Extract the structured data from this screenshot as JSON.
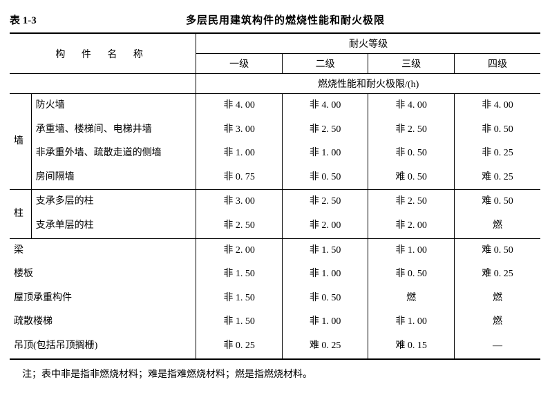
{
  "table_no": "表 1-3",
  "title": "多层民用建筑构件的燃烧性能和耐火极限",
  "header": {
    "component_name": "构 件 名 称",
    "fire_rating": "耐火等级",
    "grades": [
      "一级",
      "二级",
      "三级",
      "四级"
    ],
    "subhead": "燃烧性能和耐火极限/(h)"
  },
  "groups": [
    {
      "label": "墙",
      "rows": [
        {
          "name": "防火墙",
          "v": [
            "非 4. 00",
            "非 4. 00",
            "非 4. 00",
            "非 4. 00"
          ]
        },
        {
          "name": "承重墙、楼梯间、电梯井墙",
          "v": [
            "非 3. 00",
            "非 2. 50",
            "非 2. 50",
            "非 0. 50"
          ]
        },
        {
          "name": "非承重外墙、疏散走道的侧墙",
          "v": [
            "非 1. 00",
            "非 1. 00",
            "非 0. 50",
            "非 0. 25"
          ]
        },
        {
          "name": "房间隔墙",
          "v": [
            "非 0. 75",
            "非 0. 50",
            "难 0. 50",
            "难 0. 25"
          ]
        }
      ]
    },
    {
      "label": "柱",
      "rows": [
        {
          "name": "支承多层的柱",
          "v": [
            "非 3. 00",
            "非 2. 50",
            "非 2. 50",
            "难 0. 50"
          ]
        },
        {
          "name": "支承单层的柱",
          "v": [
            "非 2. 50",
            "非 2. 00",
            "非 2. 00",
            "燃"
          ]
        }
      ]
    },
    {
      "label": "",
      "rows": [
        {
          "name": "梁",
          "v": [
            "非 2. 00",
            "非 1. 50",
            "非 1. 00",
            "难 0. 50"
          ]
        },
        {
          "name": "楼板",
          "v": [
            "非 1. 50",
            "非 1. 00",
            "非 0. 50",
            "难 0. 25"
          ]
        },
        {
          "name": "屋顶承重构件",
          "v": [
            "非 1. 50",
            "非 0. 50",
            "燃",
            "燃"
          ]
        },
        {
          "name": "疏散楼梯",
          "v": [
            "非 1. 50",
            "非 1. 00",
            "非 1. 00",
            "燃"
          ]
        },
        {
          "name": "吊顶(包括吊顶搁栅)",
          "v": [
            "非 0. 25",
            "难 0. 25",
            "难 0. 15",
            "—"
          ]
        }
      ]
    }
  ],
  "footnote": "注；表中非是指非燃烧材料；难是指难燃烧材料；燃是指燃烧材料。"
}
